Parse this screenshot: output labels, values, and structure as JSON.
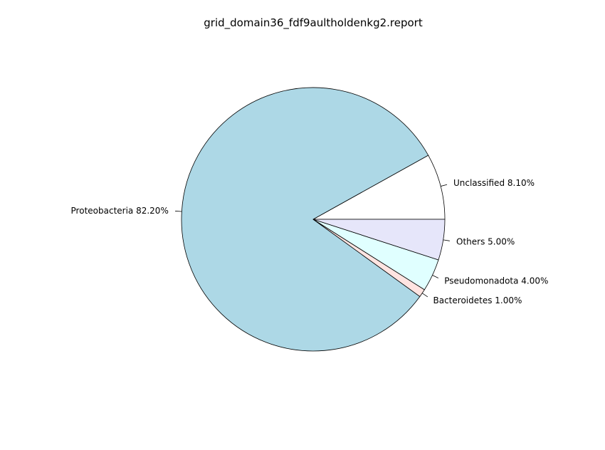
{
  "chart_data": {
    "type": "pie",
    "title": "grid_domain36_fdf9aultholdenkg2.report",
    "slices": [
      {
        "label": "Unclassified",
        "value": 8.1,
        "value_text": "8.10%",
        "color": "#ffffff"
      },
      {
        "label": "Proteobacteria",
        "value": 82.2,
        "value_text": "82.20%",
        "color": "#add8e6"
      },
      {
        "label": "Bacteroidetes",
        "value": 1.0,
        "value_text": "1.00%",
        "color": "#ffe4e1"
      },
      {
        "label": "Pseudomonadota",
        "value": 4.0,
        "value_text": "4.00%",
        "color": "#e0ffff"
      },
      {
        "label": "Others",
        "value": 5.0,
        "value_text": "5.00%",
        "color": "#e6e6fa"
      }
    ],
    "start_angle_deg": 0,
    "direction": "counterclockwise",
    "legend": "none"
  }
}
